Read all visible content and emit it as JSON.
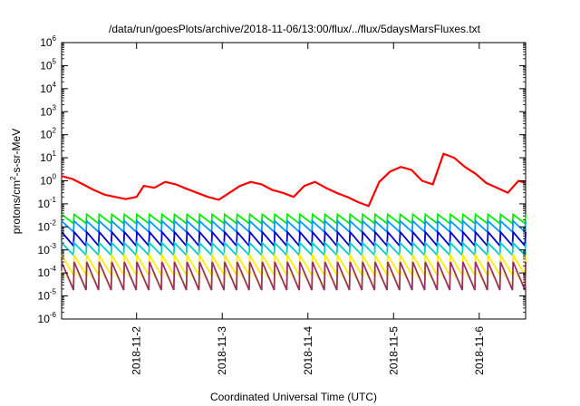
{
  "chart_data": {
    "type": "line",
    "title": "/data/run/goesPlots/archive/2018-11-06/13:00/flux/../flux/5daysMarsFluxes.txt",
    "xlabel": "Coordinated Universal Time (UTC)",
    "ylabel_parts": [
      "protons/cm",
      "2",
      "-s-sr-MeV"
    ],
    "x_scale": "time",
    "x_range": [
      "2018-11-01T03:00",
      "2018-11-06T13:00"
    ],
    "x_ticks": [
      "2018-11-2",
      "2018-11-3",
      "2018-11-4",
      "2018-11-5",
      "2018-11-6"
    ],
    "x_tick_dates": [
      "2018-11-02T00:00",
      "2018-11-03T00:00",
      "2018-11-04T00:00",
      "2018-11-05T00:00",
      "2018-11-06T00:00"
    ],
    "y_scale": "log",
    "y_range": [
      1e-06,
      1000000.0
    ],
    "y_tick_exponents": [
      -6,
      -5,
      -4,
      -3,
      -2,
      -1,
      0,
      1,
      2,
      3,
      4,
      5,
      6
    ],
    "grid": false,
    "legend": "none",
    "series_colors": [
      "#ff0000",
      "#00ee00",
      "#0099ff",
      "#0000cc",
      "#00cccc",
      "#ffee00",
      "#ffff88",
      "#993366"
    ],
    "series": [
      {
        "color": "#ff0000",
        "x": [
          "2018-11-01T03:00",
          "2018-11-01T06:00",
          "2018-11-01T09:00",
          "2018-11-01T12:00",
          "2018-11-01T15:00",
          "2018-11-01T18:00",
          "2018-11-01T21:00",
          "2018-11-02T00:00",
          "2018-11-02T02:00",
          "2018-11-02T05:00",
          "2018-11-02T08:00",
          "2018-11-02T11:00",
          "2018-11-02T14:00",
          "2018-11-02T17:00",
          "2018-11-02T20:00",
          "2018-11-02T23:00",
          "2018-11-03T02:00",
          "2018-11-03T05:00",
          "2018-11-03T08:00",
          "2018-11-03T11:00",
          "2018-11-03T14:00",
          "2018-11-03T17:00",
          "2018-11-03T20:00",
          "2018-11-03T23:00",
          "2018-11-04T02:00",
          "2018-11-04T05:00",
          "2018-11-04T08:00",
          "2018-11-04T11:00",
          "2018-11-04T14:00",
          "2018-11-04T17:00",
          "2018-11-04T20:00",
          "2018-11-04T23:00",
          "2018-11-05T02:00",
          "2018-11-05T05:00",
          "2018-11-05T08:00",
          "2018-11-05T11:00",
          "2018-11-05T14:00",
          "2018-11-05T17:00",
          "2018-11-05T20:00",
          "2018-11-05T23:00",
          "2018-11-06T02:00",
          "2018-11-06T05:00",
          "2018-11-06T08:00",
          "2018-11-06T11:00",
          "2018-11-06T13:00"
        ],
        "y": [
          1.6,
          1.2,
          0.7,
          0.4,
          0.25,
          0.2,
          0.16,
          0.2,
          0.6,
          0.5,
          0.9,
          0.7,
          0.45,
          0.3,
          0.2,
          0.15,
          0.3,
          0.6,
          0.9,
          0.7,
          0.4,
          0.3,
          0.2,
          0.6,
          0.9,
          0.5,
          0.3,
          0.2,
          0.12,
          0.08,
          0.9,
          2.5,
          4.0,
          3.0,
          1.0,
          0.7,
          15.0,
          10.0,
          4.0,
          2.0,
          0.8,
          0.5,
          0.3,
          1.0,
          0.8
        ]
      }
    ],
    "sawtooth_bands": [
      {
        "color": "#00ee00",
        "top": 0.035,
        "bottom": 0.014,
        "cycles": 37
      },
      {
        "color": "#0099ff",
        "top": 0.018,
        "bottom": 0.006,
        "cycles": 37
      },
      {
        "color": "#0000cc",
        "top": 0.006,
        "bottom": 0.0015,
        "cycles": 37
      },
      {
        "color": "#00cccc",
        "top": 0.002,
        "bottom": 0.0006,
        "cycles": 37
      },
      {
        "color": "#ffee00",
        "top": 0.0006,
        "bottom": 8e-05,
        "cycles": 37
      },
      {
        "color": "#ffff88",
        "top": 0.00012,
        "bottom": 3e-05,
        "cycles": 37
      },
      {
        "color": "#993366",
        "top": 0.0003,
        "bottom": 1.8e-05,
        "cycles": 37
      }
    ]
  }
}
